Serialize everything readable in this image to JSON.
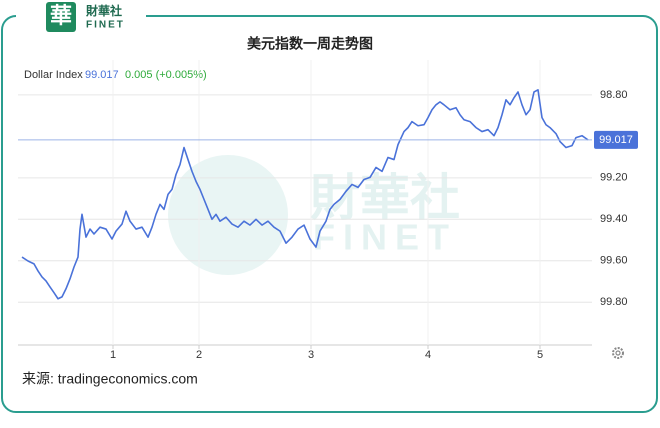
{
  "logo": {
    "mark": "華",
    "name": "財華社",
    "latin": "FINET"
  },
  "watermark": {
    "name": "財華社",
    "latin": "FINET"
  },
  "source": "来源: tradingeconomics.com",
  "chart_data": {
    "type": "line",
    "title": "美元指数一周走势图",
    "legend": {
      "name": "Dollar Index",
      "value": "99.017",
      "change": "0.005 (+0.005%)"
    },
    "series": [
      {
        "name": "Dollar Index",
        "color": "#4a72d9",
        "x": [
          4,
          10,
          16,
          20,
          24,
          28,
          32,
          36,
          40,
          44,
          48,
          52,
          56,
          60,
          62,
          64,
          68,
          72,
          76,
          82,
          88,
          94,
          98,
          104,
          108,
          112,
          118,
          124,
          130,
          134,
          138,
          142,
          146,
          150,
          154,
          158,
          162,
          166,
          170,
          174,
          178,
          182,
          186,
          190,
          194,
          198,
          202,
          208,
          214,
          220,
          226,
          232,
          238,
          244,
          250,
          256,
          262,
          268,
          274,
          280,
          286,
          292,
          298,
          302,
          308,
          312,
          316,
          322,
          328,
          334,
          340,
          346,
          352,
          358,
          364,
          370,
          376,
          380,
          386,
          390,
          394,
          400,
          406,
          410,
          414,
          418,
          422,
          426,
          432,
          438,
          442,
          446,
          452,
          458,
          464,
          470,
          476,
          480,
          484,
          488,
          492,
          496,
          500,
          504,
          508,
          512,
          516,
          520,
          524,
          528,
          532,
          538,
          542,
          548,
          554,
          558,
          564,
          570
        ],
        "values": [
          99.582,
          99.601,
          99.615,
          99.649,
          99.678,
          99.697,
          99.726,
          99.754,
          99.783,
          99.774,
          99.735,
          99.687,
          99.63,
          99.582,
          99.447,
          99.376,
          99.486,
          99.447,
          99.471,
          99.438,
          99.447,
          99.495,
          99.457,
          99.423,
          99.361,
          99.409,
          99.447,
          99.438,
          99.486,
          99.438,
          99.376,
          99.328,
          99.352,
          99.28,
          99.256,
          99.184,
          99.136,
          99.054,
          99.112,
          99.169,
          99.217,
          99.256,
          99.304,
          99.352,
          99.4,
          99.376,
          99.409,
          99.39,
          99.423,
          99.438,
          99.409,
          99.428,
          99.4,
          99.428,
          99.409,
          99.438,
          99.457,
          99.515,
          99.486,
          99.447,
          99.428,
          99.495,
          99.534,
          99.457,
          99.409,
          99.352,
          99.328,
          99.304,
          99.265,
          99.232,
          99.246,
          99.208,
          99.198,
          99.15,
          99.169,
          99.102,
          99.112,
          99.04,
          98.977,
          98.958,
          98.929,
          98.949,
          98.944,
          98.91,
          98.872,
          98.848,
          98.834,
          98.848,
          98.872,
          98.862,
          98.896,
          98.92,
          98.929,
          98.958,
          98.977,
          98.968,
          98.997,
          98.958,
          98.896,
          98.824,
          98.848,
          98.814,
          98.786,
          98.848,
          98.896,
          98.872,
          98.786,
          98.776,
          98.91,
          98.944,
          98.958,
          98.987,
          99.025,
          99.054,
          99.045,
          99.006,
          98.997,
          99.017
        ]
      }
    ],
    "xlim": [
      0,
      574
    ],
    "xticks": [
      {
        "value": 95,
        "label": "1"
      },
      {
        "value": 181,
        "label": "2"
      },
      {
        "value": 293,
        "label": "3"
      },
      {
        "value": 410,
        "label": "4"
      },
      {
        "value": 522,
        "label": "5"
      }
    ],
    "ylim": [
      98.632,
      100.006
    ],
    "y_inverted": true,
    "yticks": [
      {
        "value": 98.8,
        "label": "98.80"
      },
      {
        "value": 99.2,
        "label": "99.20"
      },
      {
        "value": 99.4,
        "label": "99.40"
      },
      {
        "value": 99.6,
        "label": "99.60"
      },
      {
        "value": 99.8,
        "label": "99.80"
      }
    ],
    "grid": true
  }
}
